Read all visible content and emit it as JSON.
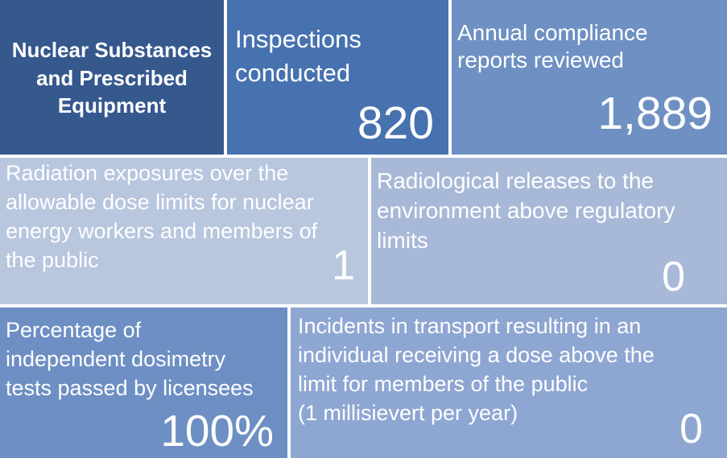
{
  "tiles": [
    {
      "label": "Nuclear Substances\nand Prescribed\nEquipment",
      "value": ""
    },
    {
      "label": "Inspections\nconducted",
      "value": "820"
    },
    {
      "label": "Annual compliance\nreports reviewed",
      "value": "1,889"
    },
    {
      "label": "Radiation exposures over the\nallowable dose limits for nuclear\nenergy workers and members of\nthe public",
      "value": "1"
    },
    {
      "label": "Radiological releases to the\nenvironment above regulatory\nlimits",
      "value": "0"
    },
    {
      "label": "Percentage of\nindependent dosimetry\ntests passed by licensees",
      "value": "100%"
    },
    {
      "label": "Incidents in transport resulting in an\nindividual receiving a dose above the\nlimit for members of the public\n(1 millisievert per year)",
      "value": "0"
    }
  ]
}
